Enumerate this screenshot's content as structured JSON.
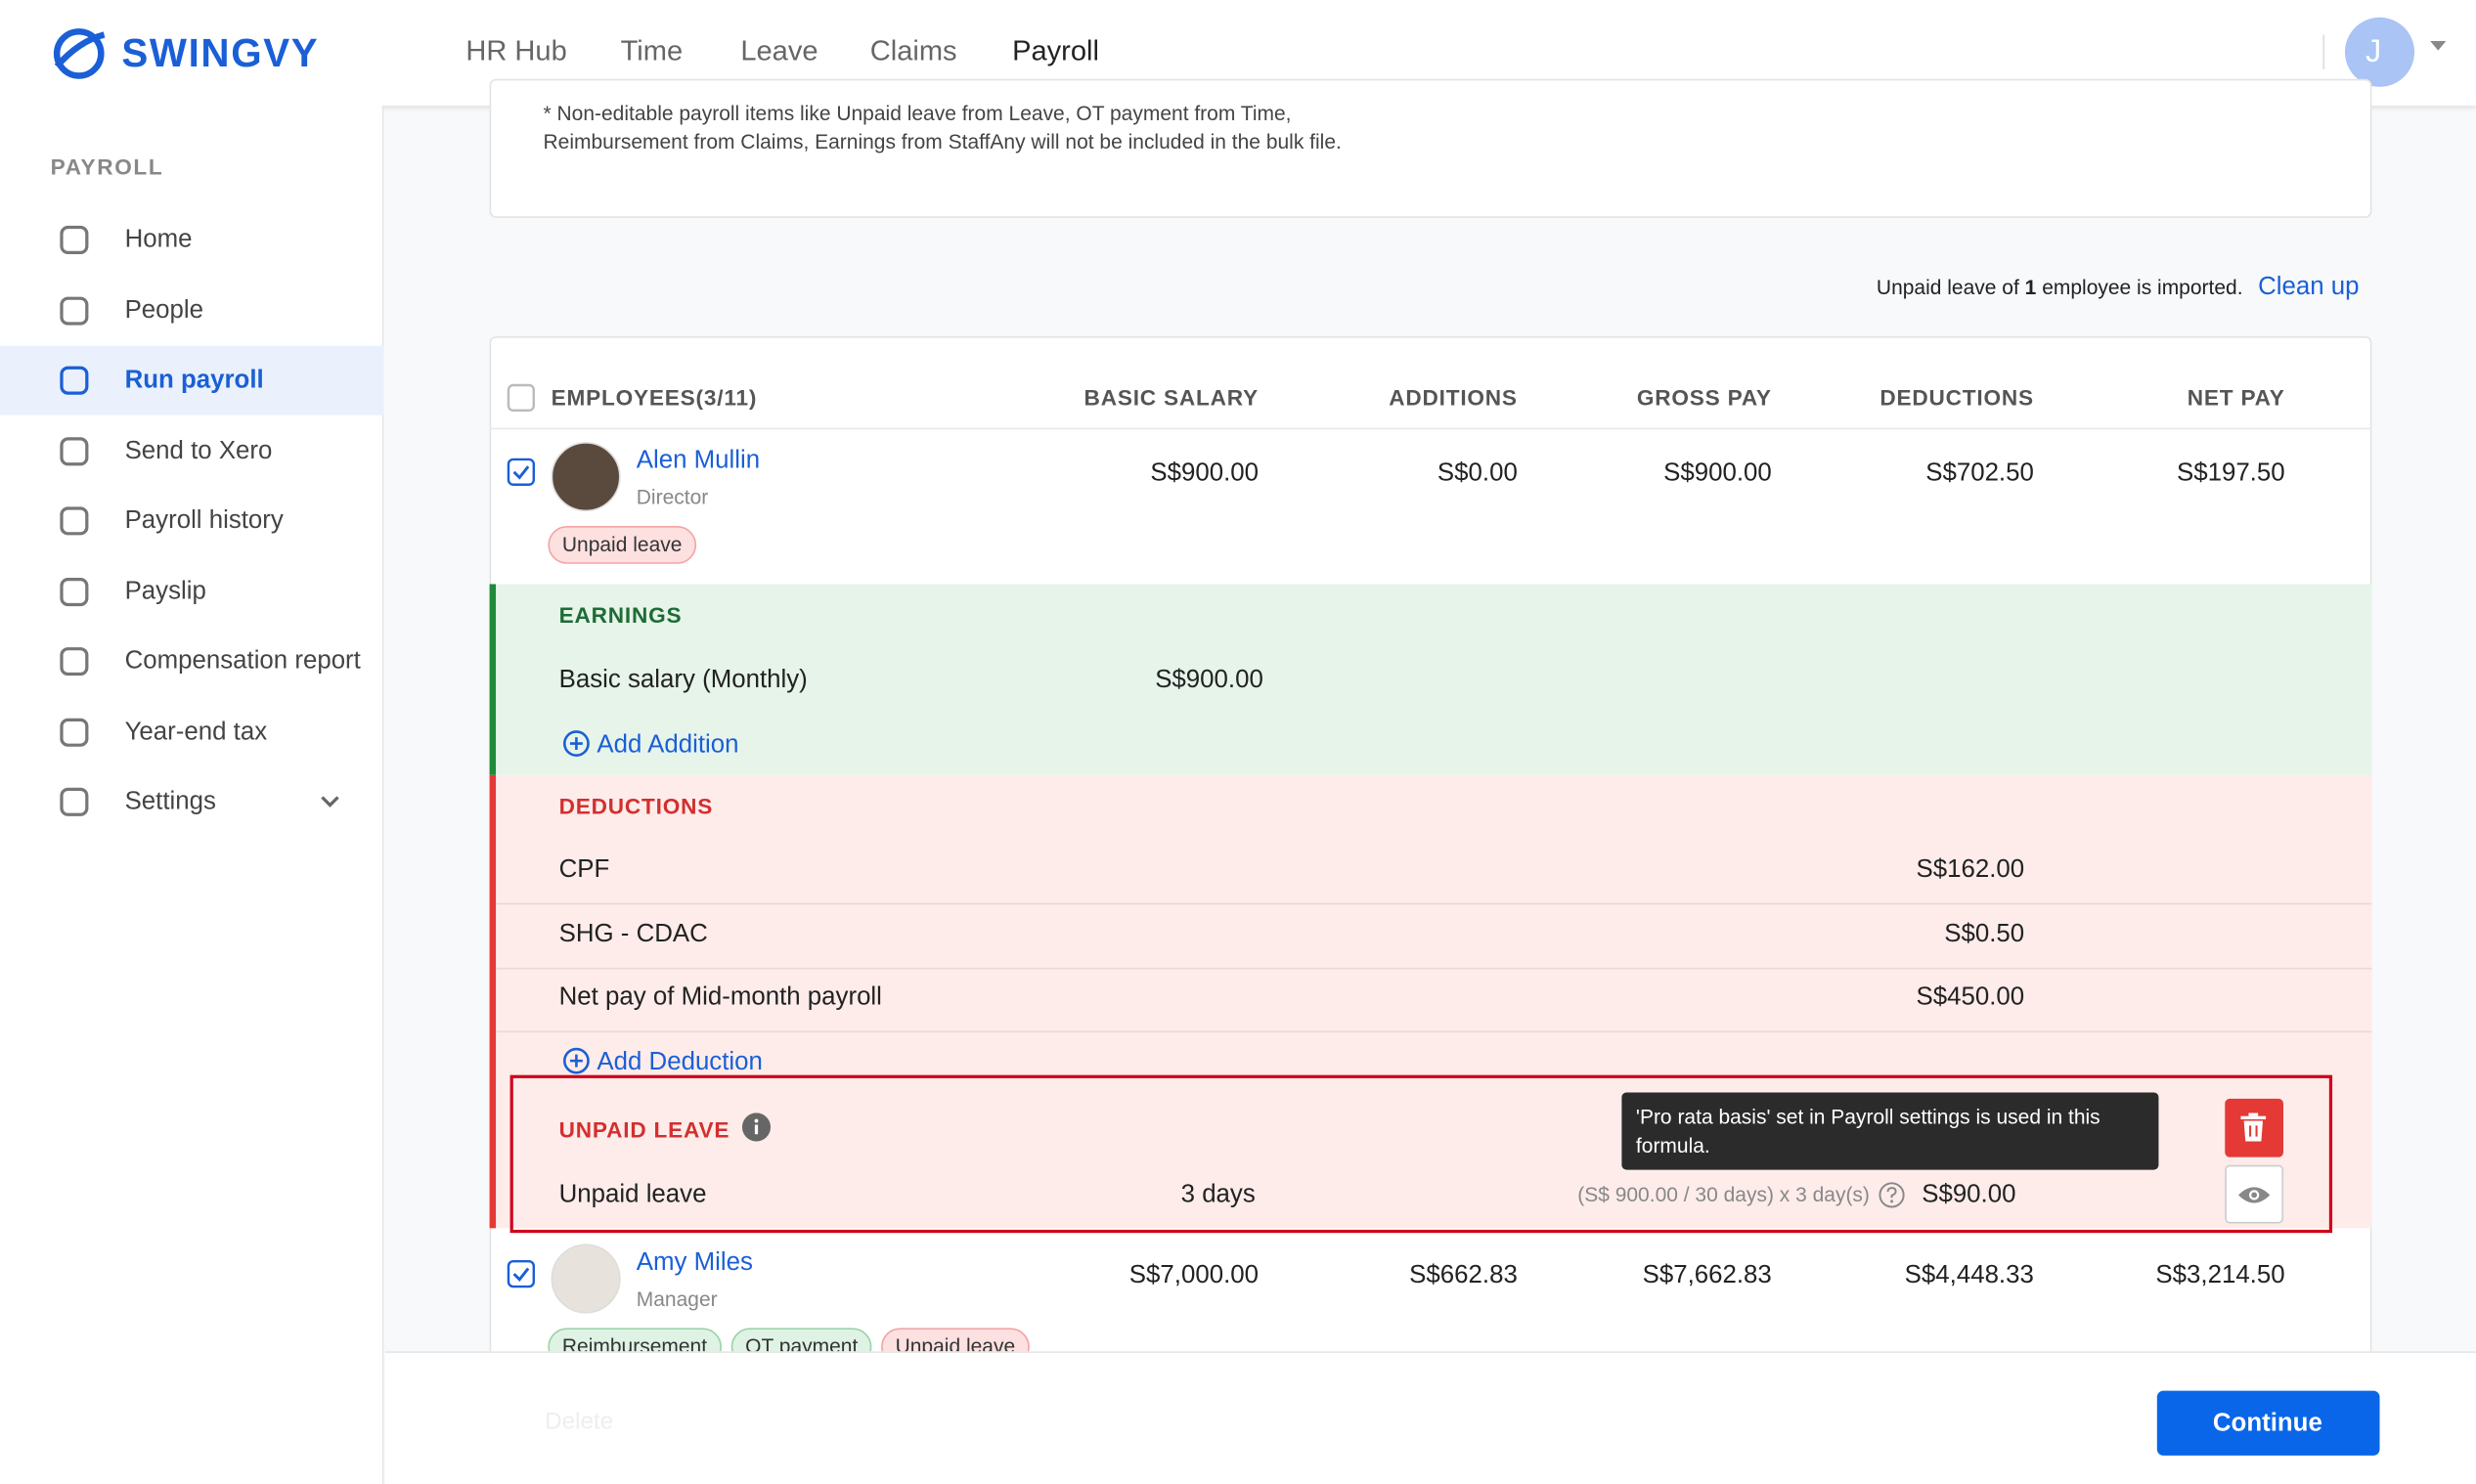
{
  "brand": "SWINGVY",
  "top_nav": [
    "HR Hub",
    "Time",
    "Leave",
    "Claims",
    "Payroll"
  ],
  "avatar": "J",
  "sidebar": {
    "section": "PAYROLL",
    "items": [
      "Home",
      "People",
      "Run payroll",
      "Send to Xero",
      "Payroll history",
      "Payslip",
      "Compensation report",
      "Year-end tax",
      "Settings"
    ],
    "active": 2
  },
  "note": [
    "* Non-editable payroll items like Unpaid leave from Leave, OT payment from Time,",
    "Reimbursement from Claims, Earnings from StaffAny will not be included in the bulk file."
  ],
  "import_notice": {
    "before": "Unpaid leave of",
    "count": "1",
    "after": "employee is imported.",
    "link": "Clean up"
  },
  "table": {
    "headers": [
      "EMPLOYEES(3/11)",
      "BASIC SALARY",
      "ADDITIONS",
      "GROSS PAY",
      "DEDUCTIONS",
      "NET PAY"
    ],
    "employees": [
      {
        "name": "Alen Mullin",
        "role": "Director",
        "tags": [
          "Unpaid leave"
        ],
        "values": [
          "S$900.00",
          "S$0.00",
          "S$900.00",
          "S$702.50",
          "S$197.50"
        ]
      },
      {
        "name": "Amy Miles",
        "role": "Manager",
        "tags": [
          "Reimbursement",
          "OT payment",
          "Unpaid leave"
        ],
        "values": [
          "S$7,000.00",
          "S$662.83",
          "S$7,662.83",
          "S$4,448.33",
          "S$3,214.50"
        ]
      }
    ]
  },
  "earnings": {
    "title": "EARNINGS",
    "rows": [
      {
        "label": "Basic salary (Monthly)",
        "value": "S$900.00"
      }
    ],
    "add": "Add Addition"
  },
  "deductions": {
    "title": "DEDUCTIONS",
    "rows": [
      {
        "label": "CPF",
        "value": "S$162.00"
      },
      {
        "label": "SHG - CDAC",
        "value": "S$0.50"
      },
      {
        "label": "Net pay of Mid-month payroll",
        "value": "S$450.00"
      }
    ],
    "add": "Add Deduction"
  },
  "unpaid_leave": {
    "title": "UNPAID LEAVE",
    "label": "Unpaid leave",
    "days": "3 days",
    "formula": "(S$ 900.00 / 30 days) x 3 day(s)",
    "amount": "S$90.00",
    "tooltip": "'Pro rata basis' set in Payroll settings is used in this formula."
  },
  "footer": {
    "delete": "Delete",
    "continue": "Continue"
  }
}
